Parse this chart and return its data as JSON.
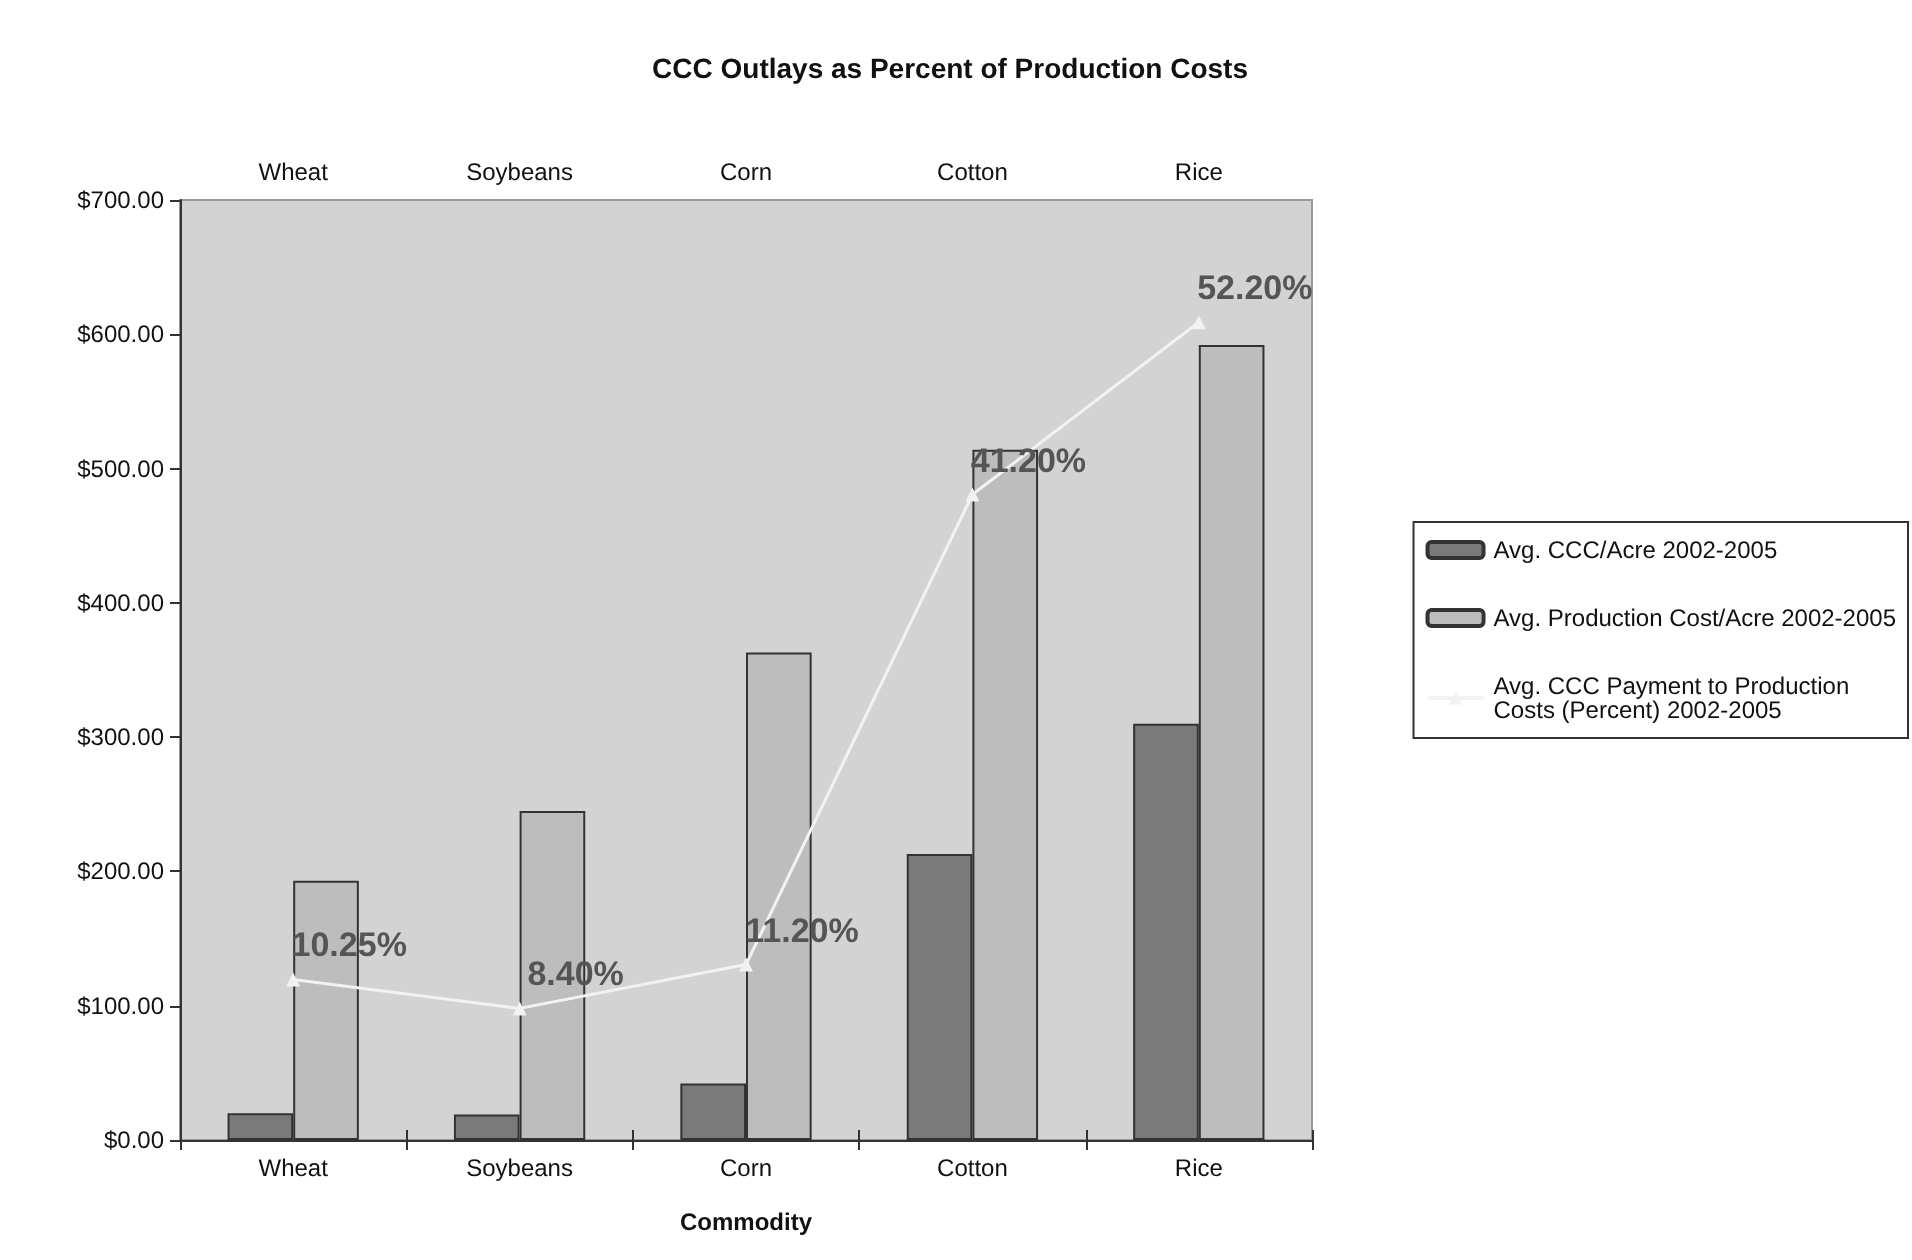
{
  "chart_data": {
    "type": "bar",
    "title": "CCC Outlays as Percent of Production Costs",
    "xlabel": "Commodity",
    "categories": [
      "Wheat",
      "Soybeans",
      "Corn",
      "Cotton",
      "Rice"
    ],
    "series": [
      {
        "name": "Avg. CCC/Acre 2002-2005",
        "color": "#7a7a7a",
        "values": [
          20,
          19,
          42,
          213,
          310
        ]
      },
      {
        "name": "Avg. Production Cost/Acre 2002-2005",
        "color": "#bdbdbd",
        "values": [
          193,
          245,
          363,
          514,
          592
        ]
      },
      {
        "name": "Avg. CCC Payment to Production Costs (Percent) 2002-2005",
        "type": "line",
        "axis": "y2",
        "color": "#f2f2f2",
        "marker": "triangle",
        "values": [
          10.25,
          8.4,
          11.2,
          41.2,
          52.2
        ],
        "value_labels": [
          "10.25%",
          "8.40%",
          "11.20%",
          "41.20%",
          "52.20%"
        ]
      }
    ],
    "ylim": [
      0,
      700
    ],
    "yticks": [
      {
        "value": 0,
        "label": "$0.00"
      },
      {
        "value": 100,
        "label": "$100.00"
      },
      {
        "value": 200,
        "label": "$200.00"
      },
      {
        "value": 300,
        "label": "$300.00"
      },
      {
        "value": 400,
        "label": "$400.00"
      },
      {
        "value": 500,
        "label": "$500.00"
      },
      {
        "value": 600,
        "label": "$600.00"
      },
      {
        "value": 700,
        "label": "$700.00"
      }
    ],
    "grid": false,
    "legend": "right"
  }
}
